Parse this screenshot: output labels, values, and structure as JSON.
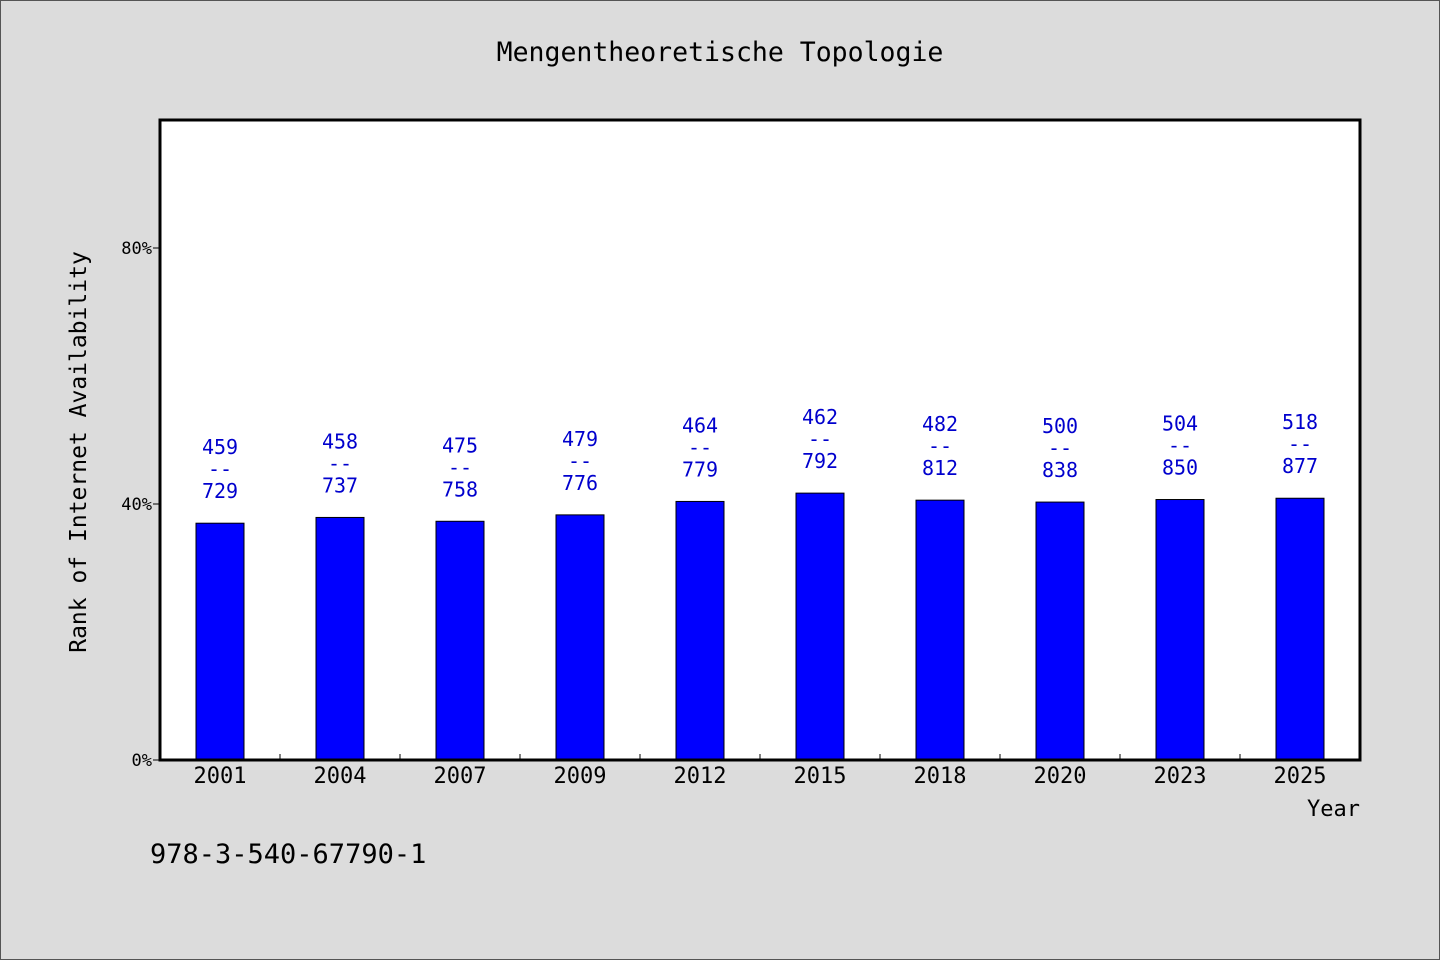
{
  "page": {
    "background_color": "#dcdcdc",
    "annotation": "978-3-540-67790-1"
  },
  "chart_data": {
    "type": "bar",
    "title": "Mengentheoretische Topologie",
    "xlabel": "Year",
    "ylabel": "Rank of Internet Availability",
    "categories": [
      "2001",
      "2004",
      "2007",
      "2009",
      "2012",
      "2015",
      "2018",
      "2020",
      "2023",
      "2025"
    ],
    "values": [
      37.0,
      37.9,
      37.3,
      38.3,
      40.4,
      41.7,
      40.6,
      40.3,
      40.7,
      40.9
    ],
    "ylim": [
      0,
      100
    ],
    "yticks": [
      0,
      40,
      80
    ],
    "ytick_labels": [
      "0%",
      "40%",
      "80%"
    ],
    "data_labels": [
      [
        "459",
        "--",
        "729"
      ],
      [
        "458",
        "--",
        "737"
      ],
      [
        "475",
        "--",
        "758"
      ],
      [
        "479",
        "--",
        "776"
      ],
      [
        "464",
        "--",
        "779"
      ],
      [
        "462",
        "--",
        "792"
      ],
      [
        "482",
        "--",
        "812"
      ],
      [
        "500",
        "--",
        "838"
      ],
      [
        "504",
        "--",
        "850"
      ],
      [
        "518",
        "--",
        "877"
      ]
    ],
    "grid": false,
    "colors": {
      "bar": "#0000ff",
      "bar_edge": "#000000",
      "data_label": "#0000cd",
      "plot_background": "#ffffff"
    }
  }
}
